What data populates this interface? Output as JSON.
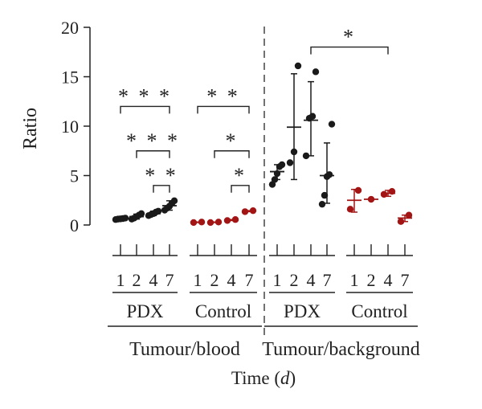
{
  "chart_data": {
    "type": "scatter",
    "ylabel": "Ratio",
    "ylim": [
      0,
      20
    ],
    "yticks": [
      0,
      5,
      10,
      15,
      20
    ],
    "xlabel": {
      "prefix": "Time (",
      "var": "d",
      "suffix": ")"
    },
    "colors": {
      "PDX": "#1a1a1a",
      "Control": "#a31515",
      "axis": "#222222"
    },
    "sections": [
      {
        "label": "Tumour/blood",
        "groups": [
          {
            "label": "PDX",
            "color_key": "PDX",
            "times": [
              {
                "tick": "1",
                "points": [
                  0.55,
                  0.6,
                  0.62,
                  0.65,
                  0.7
                ],
                "mean": 0.62,
                "sd_low": 0.55,
                "sd_high": 0.7
              },
              {
                "tick": "2",
                "points": [
                  0.6,
                  0.7,
                  0.85,
                  1.0,
                  1.15
                ],
                "mean": 0.85,
                "sd_low": 0.6,
                "sd_high": 1.1
              },
              {
                "tick": "4",
                "points": [
                  0.95,
                  1.05,
                  1.15,
                  1.3,
                  1.4
                ],
                "mean": 1.15,
                "sd_low": 0.95,
                "sd_high": 1.4
              },
              {
                "tick": "7",
                "points": [
                  1.5,
                  1.7,
                  1.9,
                  2.2,
                  2.45
                ],
                "mean": 1.95,
                "sd_low": 1.5,
                "sd_high": 2.45
              }
            ]
          },
          {
            "label": "Control",
            "color_key": "Control",
            "times": [
              {
                "tick": "1",
                "points": [
                  0.25,
                  0.3
                ],
                "mean": 0.28,
                "sd_low": 0.25,
                "sd_high": 0.3
              },
              {
                "tick": "2",
                "points": [
                  0.25,
                  0.3
                ],
                "mean": 0.28,
                "sd_low": 0.25,
                "sd_high": 0.3
              },
              {
                "tick": "4",
                "points": [
                  0.45,
                  0.55
                ],
                "mean": 0.5,
                "sd_low": 0.45,
                "sd_high": 0.55
              },
              {
                "tick": "7",
                "points": [
                  1.35,
                  1.45
                ],
                "mean": 1.4,
                "sd_low": 1.35,
                "sd_high": 1.45
              }
            ]
          }
        ]
      },
      {
        "label": "Tumour/background",
        "groups": [
          {
            "label": "PDX",
            "color_key": "PDX",
            "times": [
              {
                "tick": "1",
                "points": [
                  4.1,
                  4.6,
                  5.2,
                  5.9,
                  6.1
                ],
                "mean": 5.4,
                "sd_low": 4.6,
                "sd_high": 6.1
              },
              {
                "tick": "2",
                "points": [
                  6.3,
                  7.4,
                  16.1
                ],
                "mean": 9.9,
                "sd_low": 4.6,
                "sd_high": 15.3
              },
              {
                "tick": "4",
                "points": [
                  7.0,
                  10.8,
                  11.0,
                  15.5
                ],
                "mean": 10.6,
                "sd_low": 7.0,
                "sd_high": 14.5
              },
              {
                "tick": "7",
                "points": [
                  2.1,
                  3.0,
                  4.9,
                  5.1,
                  10.2
                ],
                "mean": 5.0,
                "sd_low": 2.2,
                "sd_high": 8.3
              }
            ]
          },
          {
            "label": "Control",
            "color_key": "Control",
            "times": [
              {
                "tick": "1",
                "points": [
                  1.6,
                  3.5
                ],
                "mean": 2.5,
                "sd_low": 1.3,
                "sd_high": 3.6
              },
              {
                "tick": "2",
                "points": [
                  2.6
                ],
                "mean": 2.6,
                "sd_low": 2.6,
                "sd_high": 2.6
              },
              {
                "tick": "4",
                "points": [
                  3.1,
                  3.4
                ],
                "mean": 3.2,
                "sd_low": 2.9,
                "sd_high": 3.5
              },
              {
                "tick": "7",
                "points": [
                  0.35,
                  1.0
                ],
                "mean": 0.7,
                "sd_low": 0.35,
                "sd_high": 1.0
              }
            ]
          }
        ]
      }
    ],
    "significance": [
      {
        "section": 0,
        "group": 0,
        "from": 0,
        "to": 3,
        "level": 12,
        "label": "***"
      },
      {
        "section": 0,
        "group": 0,
        "from": 1,
        "to": 3,
        "level": 7.5,
        "label": "***"
      },
      {
        "section": 0,
        "group": 0,
        "from": 2,
        "to": 3,
        "level": 4,
        "label": "**"
      },
      {
        "section": 0,
        "group": 1,
        "from": 0,
        "to": 3,
        "level": 12,
        "label": "**"
      },
      {
        "section": 0,
        "group": 1,
        "from": 1,
        "to": 3,
        "level": 7.5,
        "label": "*"
      },
      {
        "section": 0,
        "group": 1,
        "from": 2,
        "to": 3,
        "level": 4,
        "label": "*"
      },
      {
        "section": 1,
        "group": 0,
        "from": 2,
        "to": 3,
        "level": 18,
        "label": "*",
        "across_groups_to": {
          "group": 1,
          "time": 2
        }
      }
    ]
  }
}
